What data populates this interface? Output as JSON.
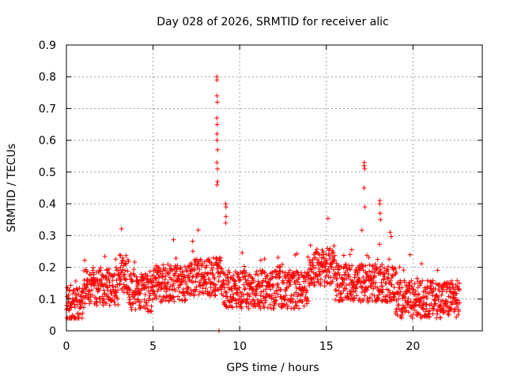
{
  "chart_data": {
    "type": "scatter",
    "title": "Day 028 of 2026, SRMTID for receiver alic",
    "xlabel": "GPS time / hours",
    "ylabel": "SRMTID / TECUs",
    "xlim": [
      0,
      24
    ],
    "ylim": [
      0,
      0.9
    ],
    "xticks": [
      0,
      5,
      10,
      15,
      20
    ],
    "xtick_labels": [
      "0",
      "5",
      "10",
      "15",
      "20"
    ],
    "yticks": [
      0,
      0.1,
      0.2,
      0.3,
      0.4,
      0.5,
      0.6,
      0.7,
      0.8,
      0.9
    ],
    "ytick_labels": [
      "0",
      "0.1",
      "0.2",
      "0.3",
      "0.4",
      "0.5",
      "0.6",
      "0.7",
      "0.8",
      "0.9"
    ],
    "grid": true,
    "marker": "plus",
    "color": "#ff0000",
    "series": [
      {
        "name": "SRMTID",
        "note": "approximately 2000 points sampled every ~0.01 h from 0 to 22.7 h; baseline ~0.05-0.25 TECU with spikes",
        "spikes": [
          {
            "x": 8.7,
            "y": [
              0.8,
              0.79,
              0.74,
              0.72,
              0.67,
              0.65,
              0.62,
              0.6,
              0.57,
              0.53,
              0.51,
              0.47,
              0.46
            ]
          },
          {
            "x": 9.2,
            "y": [
              0.4,
              0.39,
              0.36,
              0.34
            ]
          },
          {
            "x": 17.2,
            "y": [
              0.53,
              0.52,
              0.51,
              0.45,
              0.39
            ]
          },
          {
            "x": 18.1,
            "y": [
              0.41,
              0.4,
              0.37,
              0.35
            ]
          },
          {
            "x": 8.8,
            "y": [
              0.0
            ]
          }
        ]
      }
    ]
  }
}
